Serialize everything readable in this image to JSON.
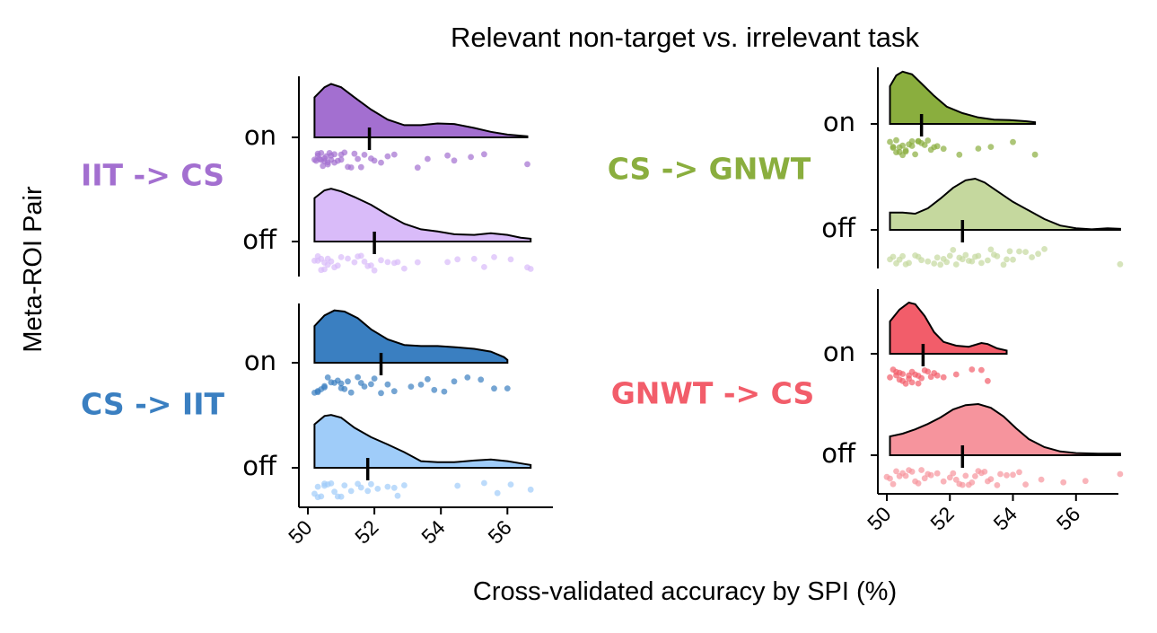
{
  "chart_data": {
    "type": "raincloud",
    "title": "Relevant non-target vs. irrelevant task",
    "xlabel": "Cross-validated accuracy by SPI (%)",
    "ylabel": "Meta-ROI Pair",
    "panels": [
      {
        "name": "IIT -> CS",
        "color": "#A36FD0",
        "xlim": [
          49.7,
          57.8
        ],
        "xticks": [
          50,
          52,
          54,
          56
        ],
        "show_x_axis": false,
        "groups": [
          {
            "label": "on",
            "fill": "#A36FD0",
            "median": 51.85,
            "density": [
              [
                50.2,
                0.72
              ],
              [
                50.5,
                0.9
              ],
              [
                50.7,
                0.96
              ],
              [
                51.0,
                0.9
              ],
              [
                51.4,
                0.72
              ],
              [
                51.9,
                0.5
              ],
              [
                52.4,
                0.32
              ],
              [
                52.9,
                0.22
              ],
              [
                53.4,
                0.22
              ],
              [
                53.9,
                0.25
              ],
              [
                54.4,
                0.24
              ],
              [
                55.0,
                0.17
              ],
              [
                55.5,
                0.1
              ],
              [
                56.0,
                0.05
              ],
              [
                56.6,
                0.02
              ]
            ],
            "points": [
              50.2,
              50.25,
              50.3,
              50.3,
              50.35,
              50.4,
              50.4,
              50.45,
              50.5,
              50.5,
              50.55,
              50.6,
              50.6,
              50.65,
              50.7,
              50.7,
              50.8,
              50.8,
              50.9,
              51.0,
              51.0,
              51.1,
              51.2,
              51.3,
              51.4,
              51.5,
              51.6,
              51.7,
              51.9,
              52.0,
              52.2,
              52.4,
              52.6,
              53.3,
              53.6,
              54.2,
              54.4,
              54.9,
              55.3,
              56.6
            ]
          },
          {
            "label": "off",
            "fill": "#D9BBF9",
            "median": 52.0,
            "density": [
              [
                50.2,
                0.78
              ],
              [
                50.5,
                0.92
              ],
              [
                50.7,
                0.95
              ],
              [
                51.0,
                0.9
              ],
              [
                51.4,
                0.8
              ],
              [
                51.9,
                0.66
              ],
              [
                52.4,
                0.48
              ],
              [
                52.9,
                0.32
              ],
              [
                53.4,
                0.22
              ],
              [
                53.9,
                0.18
              ],
              [
                54.4,
                0.13
              ],
              [
                55.0,
                0.12
              ],
              [
                55.5,
                0.15
              ],
              [
                56.0,
                0.12
              ],
              [
                56.4,
                0.07
              ],
              [
                56.7,
                0.05
              ]
            ],
            "points": [
              50.2,
              50.3,
              50.3,
              50.4,
              50.4,
              50.5,
              50.5,
              50.6,
              50.6,
              50.7,
              50.8,
              50.9,
              51.0,
              51.2,
              51.4,
              51.5,
              51.6,
              51.7,
              51.8,
              51.9,
              52.0,
              52.2,
              52.4,
              52.6,
              52.7,
              52.9,
              53.3,
              54.2,
              54.5,
              55.0,
              55.3,
              55.6,
              56.1,
              56.6,
              56.7
            ]
          }
        ]
      },
      {
        "name": "CS -> IIT",
        "color": "#3A7FC1",
        "xlim": [
          49.7,
          57.8
        ],
        "xticks": [
          50,
          52,
          54,
          56
        ],
        "show_x_axis": true,
        "groups": [
          {
            "label": "on",
            "fill": "#3A7FC1",
            "median": 52.2,
            "density": [
              [
                50.2,
                0.66
              ],
              [
                50.5,
                0.85
              ],
              [
                50.8,
                0.94
              ],
              [
                51.1,
                0.92
              ],
              [
                51.5,
                0.8
              ],
              [
                51.9,
                0.6
              ],
              [
                52.4,
                0.42
              ],
              [
                52.9,
                0.32
              ],
              [
                53.4,
                0.3
              ],
              [
                53.9,
                0.3
              ],
              [
                54.4,
                0.28
              ],
              [
                55.0,
                0.25
              ],
              [
                55.5,
                0.2
              ],
              [
                55.9,
                0.1
              ],
              [
                56.0,
                0.05
              ]
            ],
            "points": [
              50.2,
              50.3,
              50.3,
              50.4,
              50.5,
              50.5,
              50.6,
              50.7,
              50.8,
              50.9,
              51.0,
              51.0,
              51.1,
              51.2,
              51.3,
              51.5,
              51.6,
              51.7,
              51.9,
              52.0,
              52.2,
              52.4,
              52.6,
              53.1,
              53.4,
              53.6,
              53.8,
              54.1,
              54.4,
              54.8,
              55.2,
              55.6,
              56.0
            ]
          },
          {
            "label": "off",
            "fill": "#9FCCF9",
            "median": 51.8,
            "density": [
              [
                50.2,
                0.78
              ],
              [
                50.5,
                0.93
              ],
              [
                50.7,
                0.95
              ],
              [
                51.0,
                0.9
              ],
              [
                51.4,
                0.72
              ],
              [
                51.9,
                0.55
              ],
              [
                52.4,
                0.42
              ],
              [
                52.9,
                0.28
              ],
              [
                53.4,
                0.12
              ],
              [
                53.9,
                0.1
              ],
              [
                54.4,
                0.1
              ],
              [
                55.0,
                0.13
              ],
              [
                55.5,
                0.15
              ],
              [
                56.0,
                0.12
              ],
              [
                56.5,
                0.07
              ],
              [
                56.7,
                0.05
              ]
            ],
            "points": [
              50.2,
              50.3,
              50.3,
              50.4,
              50.5,
              50.5,
              50.6,
              50.7,
              50.8,
              50.9,
              51.0,
              51.1,
              51.3,
              51.5,
              51.6,
              51.8,
              51.9,
              52.1,
              52.4,
              52.6,
              52.7,
              52.9,
              54.5,
              55.3,
              55.7,
              56.1,
              56.7
            ]
          }
        ]
      },
      {
        "name": "CS -> GNWT",
        "color": "#8AAE3E",
        "xlim": [
          49.7,
          57.8
        ],
        "xticks": [
          50,
          52,
          54,
          56
        ],
        "show_x_axis": false,
        "groups": [
          {
            "label": "on",
            "fill": "#8AAE3E",
            "median": 51.1,
            "density": [
              [
                50.1,
                0.7
              ],
              [
                50.3,
                0.9
              ],
              [
                50.5,
                0.97
              ],
              [
                50.8,
                0.92
              ],
              [
                51.1,
                0.75
              ],
              [
                51.5,
                0.52
              ],
              [
                51.9,
                0.32
              ],
              [
                52.4,
                0.2
              ],
              [
                52.9,
                0.12
              ],
              [
                53.4,
                0.08
              ],
              [
                53.9,
                0.07
              ],
              [
                54.4,
                0.05
              ],
              [
                54.7,
                0.03
              ]
            ],
            "points": [
              50.1,
              50.2,
              50.2,
              50.3,
              50.3,
              50.4,
              50.4,
              50.5,
              50.5,
              50.6,
              50.6,
              50.7,
              50.8,
              50.8,
              50.9,
              51.0,
              51.0,
              51.1,
              51.2,
              51.3,
              51.4,
              51.5,
              51.6,
              51.8,
              52.3,
              52.9,
              53.3,
              54.0,
              54.7
            ]
          },
          {
            "label": "off",
            "fill": "#C5D89E",
            "median": 52.4,
            "density": [
              [
                50.1,
                0.32
              ],
              [
                50.5,
                0.32
              ],
              [
                50.9,
                0.3
              ],
              [
                51.3,
                0.4
              ],
              [
                51.7,
                0.58
              ],
              [
                52.1,
                0.78
              ],
              [
                52.5,
                0.92
              ],
              [
                52.8,
                0.95
              ],
              [
                53.1,
                0.88
              ],
              [
                53.5,
                0.72
              ],
              [
                54.0,
                0.52
              ],
              [
                54.5,
                0.36
              ],
              [
                55.0,
                0.2
              ],
              [
                55.5,
                0.08
              ],
              [
                56.0,
                0.03
              ],
              [
                56.5,
                0.01
              ],
              [
                57.0,
                0.03
              ],
              [
                57.4,
                0.02
              ]
            ],
            "points": [
              50.1,
              50.2,
              50.3,
              50.4,
              50.5,
              50.6,
              50.7,
              50.9,
              51.0,
              51.1,
              51.3,
              51.5,
              51.6,
              51.7,
              51.8,
              51.9,
              52.0,
              52.1,
              52.2,
              52.3,
              52.4,
              52.5,
              52.6,
              52.7,
              52.8,
              52.9,
              53.0,
              53.2,
              53.3,
              53.4,
              53.5,
              53.7,
              53.8,
              53.9,
              54.0,
              54.2,
              54.4,
              54.6,
              54.8,
              55.0,
              57.4
            ]
          }
        ]
      },
      {
        "name": "GNWT -> CS",
        "color": "#F25D6A",
        "xlim": [
          49.7,
          57.8
        ],
        "xticks": [
          50,
          52,
          54,
          56
        ],
        "show_x_axis": true,
        "groups": [
          {
            "label": "on",
            "fill": "#F25D6A",
            "median": 51.15,
            "density": [
              [
                50.1,
                0.6
              ],
              [
                50.4,
                0.82
              ],
              [
                50.7,
                0.95
              ],
              [
                50.9,
                0.92
              ],
              [
                51.2,
                0.7
              ],
              [
                51.5,
                0.4
              ],
              [
                51.8,
                0.22
              ],
              [
                52.2,
                0.15
              ],
              [
                52.6,
                0.13
              ],
              [
                53.0,
                0.2
              ],
              [
                53.2,
                0.18
              ],
              [
                53.5,
                0.1
              ],
              [
                53.8,
                0.06
              ]
            ],
            "points": [
              50.1,
              50.2,
              50.3,
              50.3,
              50.4,
              50.4,
              50.5,
              50.5,
              50.6,
              50.7,
              50.7,
              50.8,
              50.8,
              50.9,
              51.0,
              51.0,
              51.1,
              51.2,
              51.3,
              51.4,
              51.5,
              51.6,
              51.8,
              52.2,
              52.7,
              53.0,
              53.2
            ]
          },
          {
            "label": "off",
            "fill": "#F6949D",
            "median": 52.4,
            "density": [
              [
                50.1,
                0.35
              ],
              [
                50.5,
                0.4
              ],
              [
                50.9,
                0.48
              ],
              [
                51.3,
                0.58
              ],
              [
                51.7,
                0.7
              ],
              [
                52.1,
                0.85
              ],
              [
                52.5,
                0.93
              ],
              [
                52.9,
                0.95
              ],
              [
                53.3,
                0.88
              ],
              [
                53.7,
                0.72
              ],
              [
                54.1,
                0.5
              ],
              [
                54.5,
                0.3
              ],
              [
                55.0,
                0.15
              ],
              [
                55.5,
                0.07
              ],
              [
                56.0,
                0.04
              ],
              [
                56.7,
                0.03
              ],
              [
                57.4,
                0.03
              ]
            ],
            "points": [
              50.0,
              50.1,
              50.2,
              50.3,
              50.4,
              50.5,
              50.6,
              50.7,
              50.8,
              50.9,
              51.0,
              51.1,
              51.2,
              51.3,
              51.4,
              51.6,
              51.8,
              52.0,
              52.1,
              52.2,
              52.3,
              52.4,
              52.5,
              52.6,
              52.7,
              52.8,
              52.9,
              53.0,
              53.1,
              53.2,
              53.3,
              53.5,
              53.6,
              53.8,
              54.0,
              54.2,
              54.4,
              54.9,
              55.6,
              56.3,
              57.4
            ]
          }
        ]
      }
    ]
  }
}
